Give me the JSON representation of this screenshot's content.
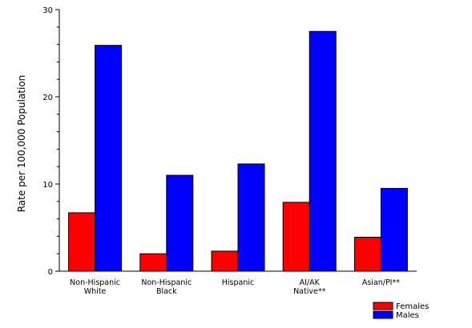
{
  "chart_data": {
    "type": "bar",
    "title": "",
    "xlabel": "",
    "ylabel": "Rate per 100,000 Population",
    "ylim": [
      0,
      30
    ],
    "yticks": [
      0,
      10,
      20,
      30
    ],
    "grid": false,
    "legend_position": "bottom-right",
    "categories": [
      [
        "Non-Hispanic",
        "White"
      ],
      [
        "Non-Hispanic",
        "Black"
      ],
      [
        "Hispanic"
      ],
      [
        "AI/AK",
        "Native**"
      ],
      [
        "Asian/PI**"
      ]
    ],
    "series": [
      {
        "name": "Females",
        "color": "#ff0000",
        "values": [
          6.7,
          2.0,
          2.3,
          7.9,
          3.9
        ]
      },
      {
        "name": "Males",
        "color": "#0000ff",
        "values": [
          25.9,
          11.0,
          12.3,
          27.5,
          9.5
        ]
      }
    ]
  }
}
